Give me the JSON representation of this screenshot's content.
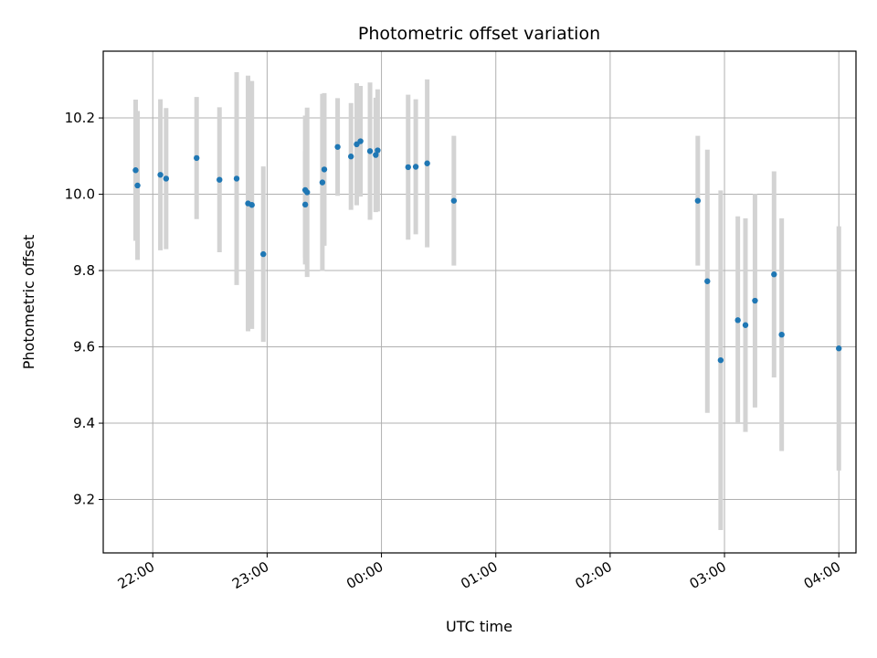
{
  "chart_data": {
    "type": "scatter",
    "title": "Photometric offset variation",
    "xlabel": "UTC time",
    "ylabel": "Photometric offset",
    "grid": true,
    "xlim": [
      "21:34",
      "04:09"
    ],
    "ylim": [
      9.06,
      10.375
    ],
    "x_ticks": [
      "22:00",
      "23:00",
      "00:00",
      "01:00",
      "02:00",
      "03:00",
      "04:00"
    ],
    "y_ticks": [
      "9.2",
      "9.4",
      "9.6",
      "9.8",
      "10.0",
      "10.2"
    ],
    "colors": {
      "points": "#1f77b4",
      "errorbars": "#d3d3d3",
      "grid": "#b0b0b0"
    },
    "series": [
      {
        "points": [
          {
            "x": "21:51",
            "y": 10.063,
            "err": 0.185
          },
          {
            "x": "21:52",
            "y": 10.023,
            "err": 0.195
          },
          {
            "x": "22:04",
            "y": 10.051,
            "err": 0.198
          },
          {
            "x": "22:07",
            "y": 10.041,
            "err": 0.185
          },
          {
            "x": "22:23",
            "y": 10.095,
            "err": 0.16
          },
          {
            "x": "22:35",
            "y": 10.038,
            "err": 0.19
          },
          {
            "x": "22:44",
            "y": 10.041,
            "err": 0.279
          },
          {
            "x": "22:50",
            "y": 9.976,
            "err": 0.335
          },
          {
            "x": "22:52",
            "y": 9.972,
            "err": 0.325
          },
          {
            "x": "22:58",
            "y": 9.843,
            "err": 0.23
          },
          {
            "x": "23:20",
            "y": 10.011,
            "err": 0.195
          },
          {
            "x": "23:20",
            "y": 9.973,
            "err": 0.14
          },
          {
            "x": "23:21",
            "y": 10.005,
            "err": 0.222
          },
          {
            "x": "23:29",
            "y": 10.031,
            "err": 0.232
          },
          {
            "x": "23:30",
            "y": 10.065,
            "err": 0.2
          },
          {
            "x": "23:37",
            "y": 10.124,
            "err": 0.128
          },
          {
            "x": "23:44",
            "y": 10.099,
            "err": 0.14
          },
          {
            "x": "23:47",
            "y": 10.131,
            "err": 0.16
          },
          {
            "x": "23:49",
            "y": 10.139,
            "err": 0.145
          },
          {
            "x": "23:54",
            "y": 10.113,
            "err": 0.18
          },
          {
            "x": "23:57",
            "y": 10.103,
            "err": 0.15
          },
          {
            "x": "23:58",
            "y": 10.115,
            "err": 0.16
          },
          {
            "x": "00:14",
            "y": 10.071,
            "err": 0.19
          },
          {
            "x": "00:18",
            "y": 10.072,
            "err": 0.177
          },
          {
            "x": "00:24",
            "y": 10.081,
            "err": 0.22
          },
          {
            "x": "00:38",
            "y": 9.983,
            "err": 0.17
          },
          {
            "x": "02:46",
            "y": 9.983,
            "err": 0.17
          },
          {
            "x": "02:51",
            "y": 9.772,
            "err": 0.345
          },
          {
            "x": "02:58",
            "y": 9.565,
            "err": 0.445
          },
          {
            "x": "03:07",
            "y": 9.67,
            "err": 0.272
          },
          {
            "x": "03:11",
            "y": 9.657,
            "err": 0.28
          },
          {
            "x": "03:16",
            "y": 9.721,
            "err": 0.28
          },
          {
            "x": "03:26",
            "y": 9.79,
            "err": 0.27
          },
          {
            "x": "03:30",
            "y": 9.632,
            "err": 0.305
          },
          {
            "x": "04:00",
            "y": 9.596,
            "err": 0.32
          }
        ]
      }
    ]
  }
}
